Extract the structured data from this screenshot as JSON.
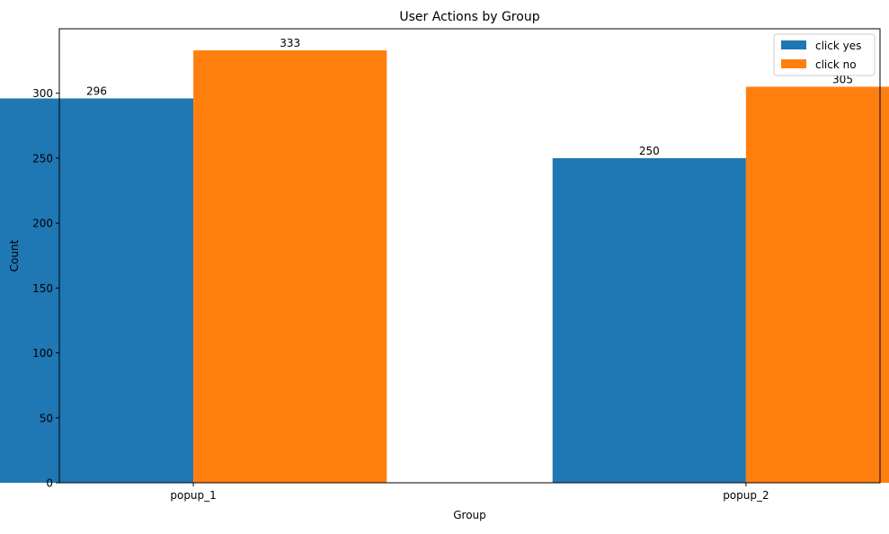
{
  "chart_data": {
    "type": "bar",
    "title": "User Actions by Group",
    "xlabel": "Group",
    "ylabel": "Count",
    "categories": [
      "popup_1",
      "popup_2"
    ],
    "series": [
      {
        "name": "click yes",
        "color": "#1f77b4",
        "values": [
          296,
          250
        ]
      },
      {
        "name": "click no",
        "color": "#ff7f0e",
        "values": [
          333,
          305
        ]
      }
    ],
    "ylim": [
      0,
      349.65
    ],
    "yticks": [
      0,
      50,
      100,
      150,
      200,
      250,
      300
    ],
    "grid": false,
    "legend_position": "top-right",
    "data_labels": true
  }
}
